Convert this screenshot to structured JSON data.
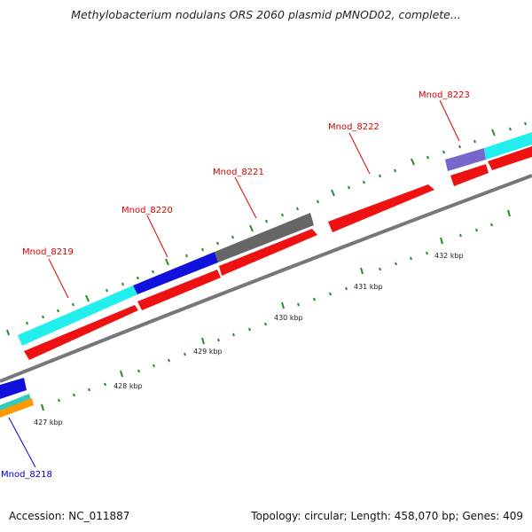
{
  "title": "Methylobacterium nodulans ORS 2060 plasmid pMNOD02, complete...",
  "footer": {
    "accession": "Accession: NC_011887",
    "summary": "Topology: circular; Length: 458,070 bp; Genes: 409"
  },
  "scale": {
    "ticks": [
      "427 kbp",
      "428 kbp",
      "429 kbp",
      "430 kbp",
      "431 kbp",
      "432 kbp"
    ]
  },
  "genes": [
    {
      "name": "Mnod_8218",
      "color": "#0000cc"
    },
    {
      "name": "Mnod_8219",
      "color": "#dd0000"
    },
    {
      "name": "Mnod_8220",
      "color": "#dd0000"
    },
    {
      "name": "Mnod_8221",
      "color": "#dd0000"
    },
    {
      "name": "Mnod_8222",
      "color": "#dd0000"
    },
    {
      "name": "Mnod_8223",
      "color": "#dd0000"
    }
  ],
  "colors": {
    "cds": "#ee1111",
    "cyan_track": "#22eeee",
    "blue_track": "#1111dd",
    "gray_track": "#666666",
    "purple_track": "#7766cc",
    "orange_track": "#ff9900",
    "teal_track": "#33ccbb",
    "backbone": "#777777",
    "tick": "#228822"
  }
}
